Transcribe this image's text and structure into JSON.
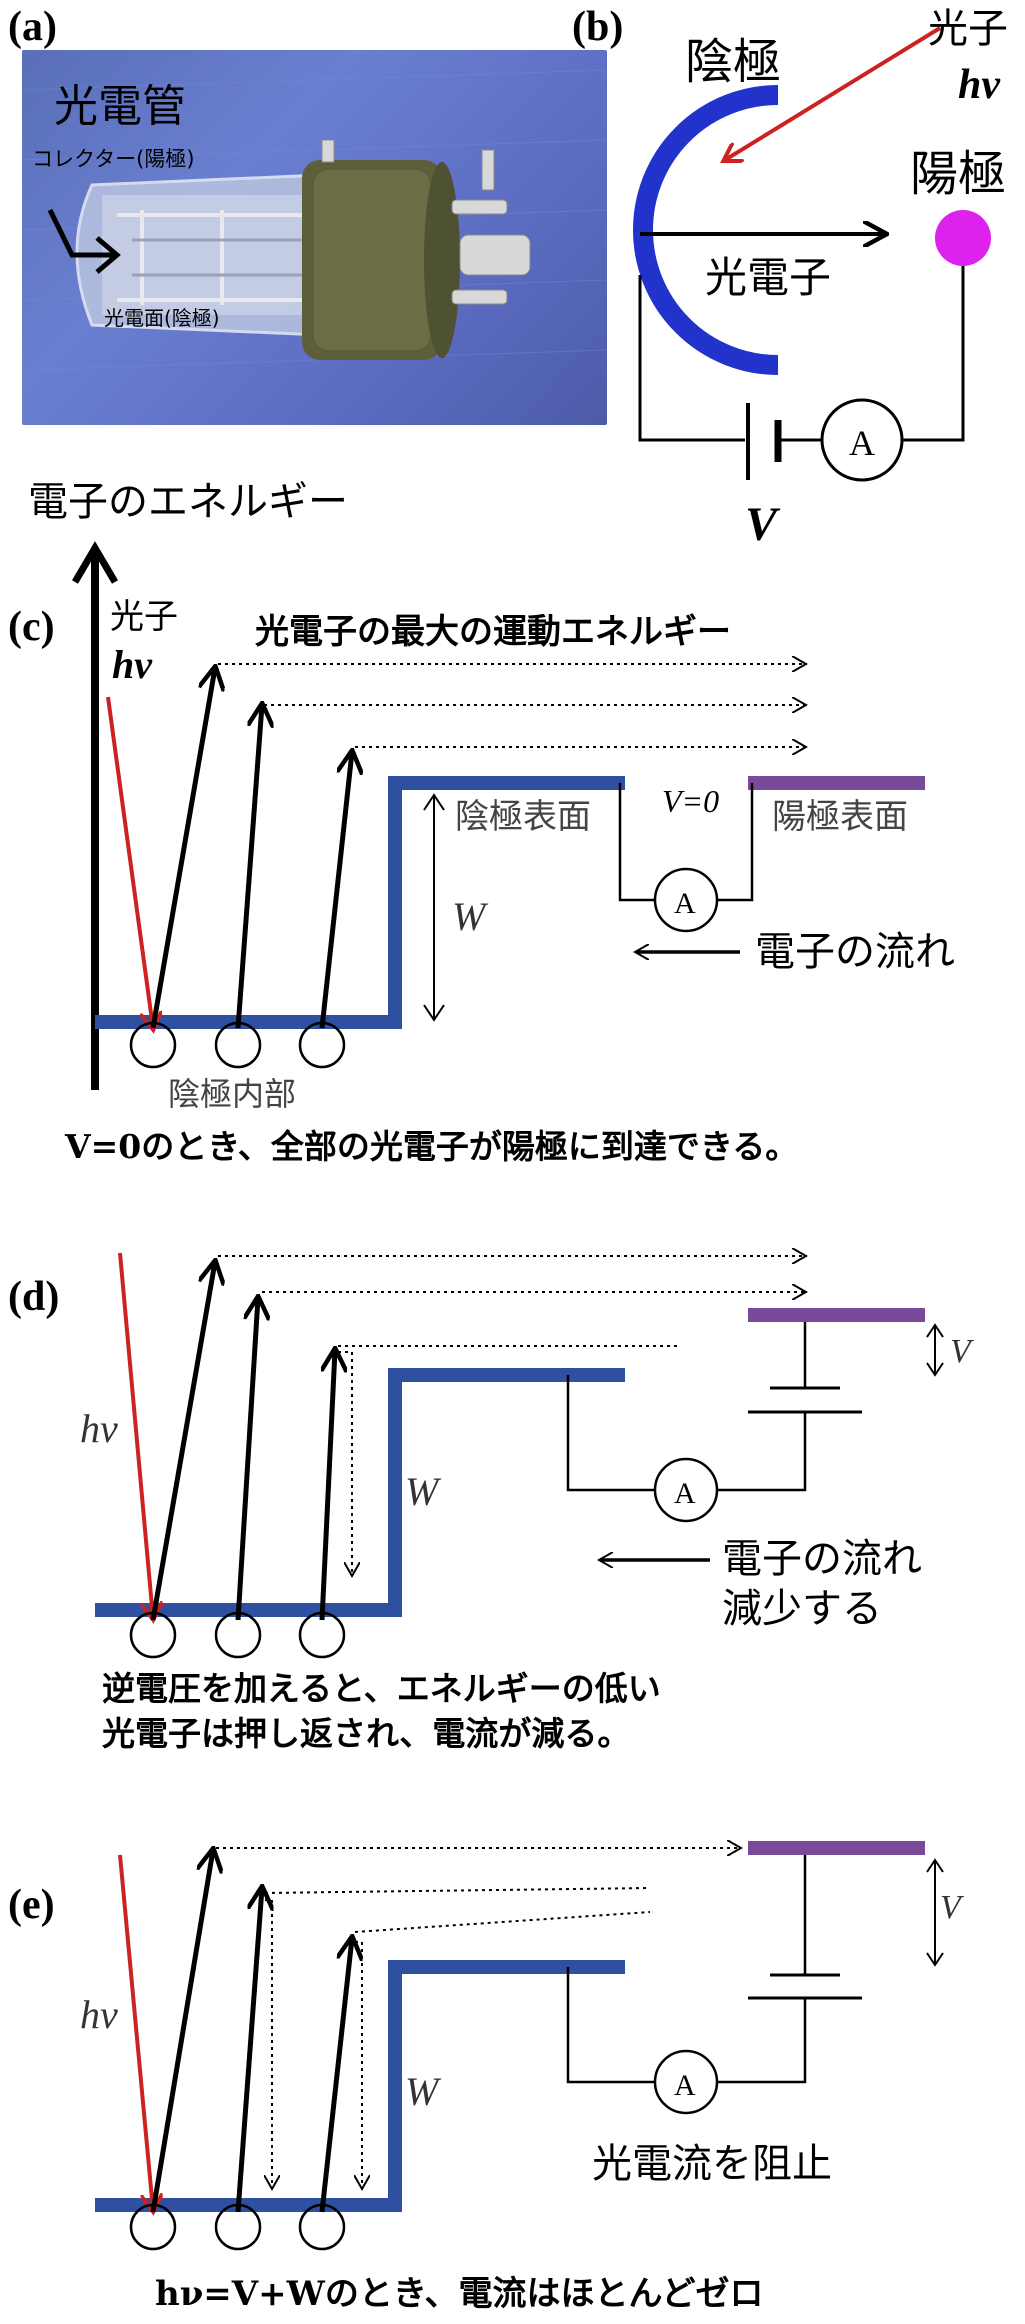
{
  "panels": {
    "a": "(a)",
    "b": "(b)",
    "c": "(c)",
    "d": "(d)",
    "e": "(e)"
  },
  "photo": {
    "title": "光電管",
    "collector_label": "コレクター(陽極)",
    "photocathode_label": "光電面(陰極)"
  },
  "circuit_b": {
    "cathode": "陰極",
    "photon_word": "光子",
    "photon_symbol": "hν",
    "anode": "陽極",
    "photoelectron": "光電子",
    "ammeter": "A",
    "voltage": "V"
  },
  "axis": {
    "label": "電子のエネルギー"
  },
  "panel_c": {
    "photon_word": "光子",
    "photon_symbol": "hν",
    "max_ke_label": "光電子の最大の運動エネルギー",
    "cathode_surface": "陰極表面",
    "v_zero": "V=0",
    "anode_surface": "陽極表面",
    "work_function": "W",
    "ammeter": "A",
    "electron_flow": "電子の流れ",
    "cathode_interior": "陰極内部",
    "caption": "V=0のとき、全部の光電子が陽極に到達できる。"
  },
  "panel_d": {
    "photon_symbol": "hν",
    "work_function": "W",
    "voltage": "V",
    "ammeter": "A",
    "flow_line1": "電子の流れ",
    "flow_line2": "減少する",
    "caption_line1": "逆電圧を加えると、エネルギーの低い",
    "caption_line2": "光電子は押し返され、電流が減る。"
  },
  "panel_e": {
    "photon_symbol": "hν",
    "work_function": "W",
    "voltage": "V",
    "ammeter": "A",
    "blocked": "光電流を阻止",
    "caption": "hν=V+Wのとき、電流はほとんどゼロ"
  },
  "colors": {
    "level_blue": "#2f4fa0",
    "anode_purple": "#7a4a9a",
    "photon_red": "#d03030",
    "cathode_blue": "#2233cc",
    "anode_magenta": "#dd22ee"
  }
}
